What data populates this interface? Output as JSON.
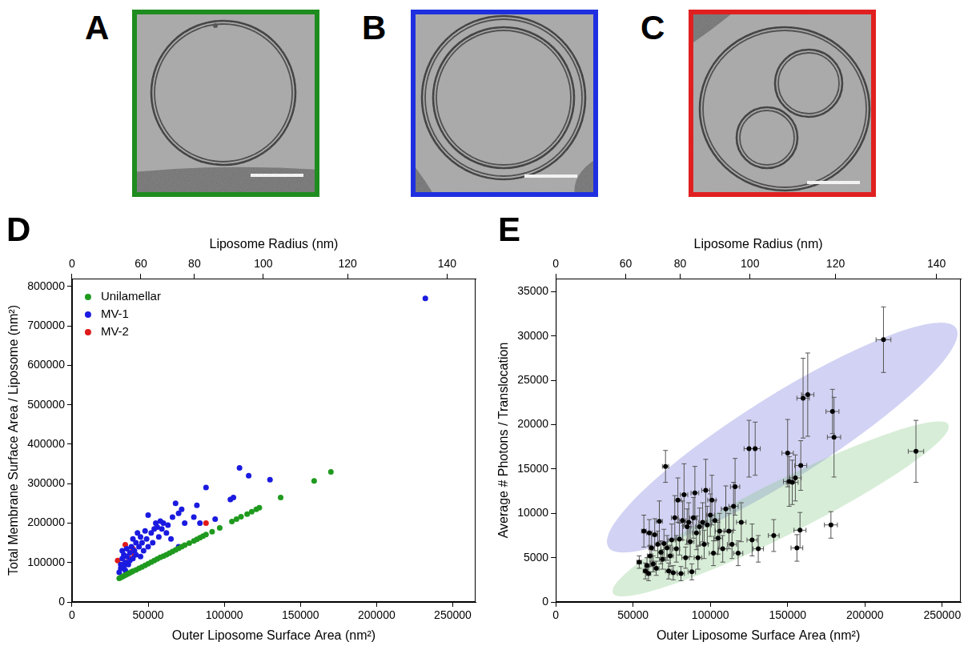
{
  "images": [
    {
      "label": "A",
      "color": "#1e8c1e"
    },
    {
      "label": "B",
      "color": "#1f2fe0"
    },
    {
      "label": "C",
      "color": "#e02020"
    }
  ],
  "chart_data": [
    {
      "type": "scatter",
      "panel": "D",
      "x_label": "Outer Liposome Surface Area (nm²)",
      "y_label": "Total Membrane Surface Area / Liposome (nm²)",
      "x2_label": "Liposome Radius (nm)",
      "xlim": [
        0,
        265000
      ],
      "xticks": [
        0,
        50000,
        100000,
        150000,
        200000,
        250000
      ],
      "x2lim": [
        0,
        265000
      ],
      "x2ticks": [
        0,
        {
          "value": 45239,
          "label": "60"
        },
        {
          "value": 80425,
          "label": "80"
        },
        {
          "value": 125664,
          "label": "100"
        },
        {
          "value": 180956,
          "label": "120"
        },
        {
          "value": 246301,
          "label": "140"
        }
      ],
      "ylim": [
        0,
        820000
      ],
      "yticks": [
        0,
        100000,
        200000,
        300000,
        400000,
        500000,
        600000,
        700000,
        800000
      ],
      "grid": false,
      "legend": "upper left",
      "marker": "circle",
      "series": [
        {
          "name": "Unilamellar",
          "color": "#1f9a1f",
          "x": [
            31000,
            32000,
            33000,
            34000,
            35000,
            36000,
            37000,
            38000,
            39000,
            40000,
            42000,
            44000,
            46000,
            48000,
            50000,
            52000,
            54000,
            56000,
            58000,
            60000,
            62000,
            64000,
            66000,
            68000,
            70000,
            72000,
            74000,
            77000,
            80000,
            82000,
            84000,
            86000,
            88000,
            92000,
            97000,
            105000,
            108000,
            111000,
            115000,
            118000,
            121000,
            123000,
            137000,
            159000,
            170000
          ],
          "values": [
            60000,
            62000,
            64000,
            66000,
            68000,
            70000,
            72000,
            74000,
            76000,
            78000,
            81000,
            85000,
            89000,
            93000,
            97000,
            101000,
            105000,
            109000,
            113000,
            116000,
            120000,
            124000,
            128000,
            132000,
            136000,
            140000,
            144000,
            149000,
            155000,
            159000,
            163000,
            167000,
            171000,
            178000,
            188000,
            204000,
            210000,
            216000,
            223000,
            229000,
            235000,
            239000,
            265000,
            307000,
            330000
          ]
        },
        {
          "name": "MV-1",
          "color": "#1a1ae0",
          "x": [
            31000,
            32000,
            32000,
            33000,
            33000,
            34000,
            34000,
            35000,
            35000,
            36000,
            36000,
            37000,
            38000,
            38000,
            39000,
            40000,
            40000,
            41000,
            42000,
            42000,
            43000,
            44000,
            45000,
            45000,
            46000,
            47000,
            48000,
            49000,
            50000,
            50000,
            52000,
            53000,
            54000,
            55000,
            56000,
            57000,
            58000,
            59000,
            60000,
            62000,
            63000,
            65000,
            66000,
            68000,
            70000,
            70000,
            72000,
            74000,
            80000,
            82000,
            84000,
            88000,
            94000,
            104000,
            106000,
            110000,
            116000,
            130000,
            232000
          ],
          "values": [
            75000,
            85000,
            95000,
            110000,
            130000,
            90000,
            120000,
            80000,
            100000,
            135000,
            115000,
            95000,
            125000,
            105000,
            140000,
            160000,
            110000,
            130000,
            150000,
            120000,
            175000,
            140000,
            115000,
            165000,
            150000,
            130000,
            180000,
            160000,
            220000,
            140000,
            175000,
            150000,
            185000,
            200000,
            190000,
            165000,
            205000,
            185000,
            200000,
            175000,
            195000,
            160000,
            215000,
            250000,
            140000,
            225000,
            235000,
            200000,
            215000,
            245000,
            200000,
            290000,
            210000,
            260000,
            265000,
            340000,
            320000,
            310000,
            770000
          ]
        },
        {
          "name": "MV-2",
          "color": "#e01a1a",
          "x": [
            30000,
            33000,
            35000,
            36000,
            38000,
            40000,
            41000,
            88000
          ],
          "values": [
            105000,
            95000,
            145000,
            100000,
            110000,
            135000,
            120000,
            200000
          ]
        }
      ]
    },
    {
      "type": "scatter",
      "panel": "E",
      "x_label": "Outer Liposome Surface Area (nm²)",
      "y_label": "Average # Photons / Translocation",
      "x2_label": "Liposome Radius (nm)",
      "xlim": [
        0,
        262000
      ],
      "xticks": [
        0,
        50000,
        100000,
        150000,
        200000,
        250000
      ],
      "x2lim": [
        0,
        262000
      ],
      "x2ticks": [
        0,
        {
          "value": 45239,
          "label": "60"
        },
        {
          "value": 80425,
          "label": "80"
        },
        {
          "value": 125664,
          "label": "100"
        },
        {
          "value": 180956,
          "label": "120"
        },
        {
          "value": 246301,
          "label": "140"
        }
      ],
      "ylim": [
        0,
        36500
      ],
      "yticks": [
        0,
        5000,
        10000,
        15000,
        20000,
        25000,
        30000,
        35000
      ],
      "grid": false,
      "marker": "circle",
      "regions": [
        {
          "color": "#6b6bdc",
          "from": [
            34000,
            6200
          ],
          "to": [
            259000,
            30900
          ],
          "half_width": 4700
        },
        {
          "color": "#7cc47c",
          "from": [
            37000,
            1000
          ],
          "to": [
            254000,
            20000
          ],
          "half_width": 3000
        }
      ],
      "series": [
        {
          "color": "#000000",
          "x": [
            54000,
            57000,
            58000,
            59000,
            60000,
            60500,
            61000,
            62000,
            63000,
            64000,
            65000,
            66000,
            67000,
            68000,
            69000,
            70000,
            71000,
            72000,
            73000,
            74000,
            75000,
            76000,
            77000,
            78000,
            79000,
            80000,
            81000,
            82000,
            83000,
            84000,
            85000,
            86000,
            87000,
            88000,
            89000,
            90000,
            91000,
            92000,
            93000,
            95000,
            96000,
            97000,
            98000,
            100000,
            101000,
            102000,
            103000,
            105000,
            106000,
            108000,
            110000,
            112000,
            114000,
            115000,
            116000,
            118000,
            120000,
            125000,
            127000,
            129000,
            131000,
            141000,
            150000,
            151000,
            153000,
            155000,
            156000,
            158000,
            158500,
            160000,
            163000,
            178000,
            179000,
            180000,
            212000,
            233000
          ],
          "values": [
            4500,
            8000,
            3500,
            4100,
            3200,
            7800,
            5200,
            6100,
            4300,
            7600,
            3800,
            6500,
            9100,
            5600,
            4800,
            6600,
            15300,
            6100,
            3500,
            5200,
            7000,
            3300,
            9500,
            6000,
            11500,
            7100,
            3200,
            9200,
            12100,
            5000,
            8500,
            9000,
            6800,
            3400,
            9500,
            12300,
            7800,
            5000,
            8500,
            9000,
            6500,
            12600,
            8700,
            9800,
            11500,
            5500,
            9200,
            7200,
            8000,
            6000,
            10500,
            8000,
            6500,
            10800,
            13000,
            5500,
            9000,
            17300,
            7000,
            17300,
            6000,
            7500,
            16800,
            13600,
            13500,
            14000,
            6100,
            8100,
            15400,
            23000,
            23400,
            8700,
            21500,
            18600,
            29600,
            17000
          ],
          "y_err": [
            700,
            1800,
            900,
            900,
            800,
            1500,
            1200,
            1500,
            900,
            1800,
            800,
            1500,
            2300,
            1300,
            1100,
            1600,
            1800,
            1400,
            900,
            1200,
            1800,
            800,
            2500,
            1500,
            2500,
            1800,
            800,
            2200,
            3500,
            1200,
            2000,
            2200,
            1700,
            900,
            2300,
            3000,
            1900,
            1300,
            2100,
            2200,
            1600,
            3500,
            2100,
            2400,
            2800,
            1400,
            2300,
            1800,
            2000,
            1500,
            2600,
            2000,
            1600,
            2700,
            3200,
            1400,
            2200,
            3200,
            1800,
            3000,
            1500,
            1800,
            3800,
            2800,
            2500,
            2600,
            1500,
            2000,
            2800,
            4500,
            4700,
            1500,
            2500,
            4500,
            3700,
            3500
          ],
          "x_err": [
            1500,
            1500,
            1500,
            1500,
            1500,
            1800,
            1800,
            1800,
            1800,
            1800,
            1800,
            2000,
            2000,
            2000,
            2000,
            2000,
            2000,
            2000,
            2000,
            2000,
            2200,
            2200,
            2200,
            2200,
            2200,
            2200,
            2200,
            2200,
            2400,
            2400,
            2400,
            2400,
            2400,
            2400,
            2400,
            2500,
            2500,
            2500,
            2500,
            2500,
            2600,
            2600,
            2600,
            2600,
            2700,
            2700,
            2700,
            2800,
            2800,
            2800,
            2900,
            2900,
            3000,
            3000,
            3000,
            3000,
            3100,
            3200,
            3300,
            3300,
            3400,
            3500,
            3700,
            3700,
            3800,
            3800,
            3800,
            3900,
            3900,
            4000,
            4000,
            4200,
            4200,
            4300,
            4800,
            5000
          ]
        }
      ]
    }
  ]
}
